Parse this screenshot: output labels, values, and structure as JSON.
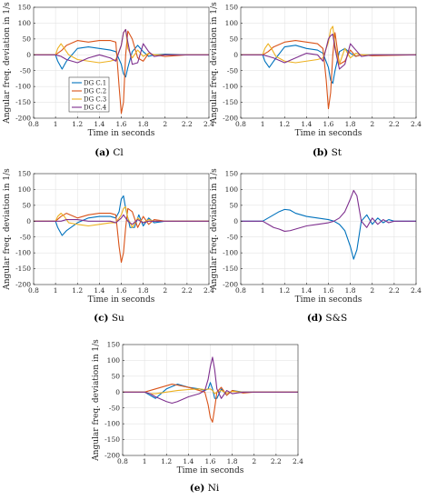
{
  "figure": {
    "captions": [
      {
        "letter": "(a)",
        "name": "Cl"
      },
      {
        "letter": "(b)",
        "name": "St"
      },
      {
        "letter": "(c)",
        "name": "Su"
      },
      {
        "letter": "(d)",
        "name": "S&S"
      },
      {
        "letter": "(e)",
        "name": "Ni"
      }
    ]
  },
  "colors": {
    "DG C.1": "#0072bd",
    "DG C.2": "#d95319",
    "DG C.3": "#edb120",
    "DG C.4": "#7e2f8e"
  },
  "chart_data": [
    {
      "id": "a",
      "type": "line",
      "title": "",
      "xlabel": "Time in seconds",
      "ylabel": "Angular freq. deviation in 1/s",
      "xlim": [
        0.8,
        2.4
      ],
      "ylim": [
        -200,
        150
      ],
      "grid": true,
      "xticks": [
        0.8,
        1,
        1.2,
        1.4,
        1.6,
        1.8,
        2,
        2.2,
        2.4
      ],
      "yticks": [
        -200,
        -150,
        -100,
        -50,
        0,
        50,
        100,
        150
      ],
      "legend": {
        "placement": "bottom-left",
        "entries": [
          "DG C.1",
          "DG C.2",
          "DG C.3",
          "DG C.4"
        ]
      },
      "series": [
        {
          "name": "DG C.1",
          "x": [
            0.8,
            1.0,
            1.02,
            1.06,
            1.1,
            1.2,
            1.3,
            1.4,
            1.5,
            1.55,
            1.6,
            1.62,
            1.64,
            1.66,
            1.7,
            1.75,
            1.8,
            1.85,
            1.9,
            2.0,
            2.2,
            2.4
          ],
          "y": [
            0,
            0,
            -20,
            -45,
            -20,
            20,
            25,
            20,
            15,
            10,
            -30,
            -60,
            -70,
            -40,
            10,
            30,
            10,
            -5,
            0,
            2,
            0,
            0
          ]
        },
        {
          "name": "DG C.2",
          "x": [
            0.8,
            1.0,
            1.02,
            1.06,
            1.1,
            1.2,
            1.3,
            1.4,
            1.5,
            1.55,
            1.58,
            1.6,
            1.62,
            1.64,
            1.66,
            1.7,
            1.75,
            1.8,
            1.85,
            1.9,
            2.0,
            2.2,
            2.4
          ],
          "y": [
            0,
            0,
            5,
            15,
            30,
            45,
            40,
            45,
            45,
            40,
            -100,
            -185,
            -150,
            0,
            75,
            50,
            -10,
            -20,
            5,
            0,
            -5,
            0,
            0
          ]
        },
        {
          "name": "DG C.3",
          "x": [
            0.8,
            1.0,
            1.02,
            1.05,
            1.08,
            1.12,
            1.2,
            1.3,
            1.4,
            1.5,
            1.55,
            1.6,
            1.62,
            1.64,
            1.66,
            1.7,
            1.75,
            1.8,
            1.85,
            1.9,
            2.0,
            2.4
          ],
          "y": [
            0,
            0,
            20,
            35,
            20,
            0,
            -15,
            -20,
            -25,
            -20,
            -15,
            30,
            70,
            80,
            20,
            -10,
            15,
            -5,
            5,
            0,
            0,
            0
          ]
        },
        {
          "name": "DG C.4",
          "x": [
            0.8,
            1.0,
            1.05,
            1.1,
            1.2,
            1.3,
            1.4,
            1.5,
            1.55,
            1.6,
            1.62,
            1.64,
            1.66,
            1.7,
            1.75,
            1.8,
            1.85,
            1.9,
            2.0,
            2.4
          ],
          "y": [
            0,
            0,
            -5,
            -15,
            -25,
            -10,
            0,
            -10,
            -20,
            30,
            70,
            80,
            40,
            -30,
            -25,
            35,
            10,
            -5,
            0,
            0
          ]
        }
      ]
    },
    {
      "id": "b",
      "type": "line",
      "title": "",
      "xlabel": "Time in seconds",
      "ylabel": "Angular freq. deviation in 1/s",
      "xlim": [
        0.8,
        2.4
      ],
      "ylim": [
        -200,
        150
      ],
      "grid": true,
      "xticks": [
        0.8,
        1,
        1.2,
        1.4,
        1.6,
        1.8,
        2,
        2.2,
        2.4
      ],
      "yticks": [
        -200,
        -150,
        -100,
        -50,
        0,
        50,
        100,
        150
      ],
      "series": [
        {
          "name": "DG C.1",
          "x": [
            0.8,
            1.0,
            1.02,
            1.06,
            1.1,
            1.2,
            1.3,
            1.4,
            1.5,
            1.55,
            1.6,
            1.62,
            1.64,
            1.66,
            1.7,
            1.75,
            1.8,
            1.85,
            1.9,
            2.0,
            2.4
          ],
          "y": [
            0,
            0,
            -20,
            -40,
            -20,
            25,
            30,
            20,
            15,
            5,
            -40,
            -80,
            -90,
            -50,
            10,
            20,
            5,
            -5,
            0,
            0,
            0
          ]
        },
        {
          "name": "DG C.2",
          "x": [
            0.8,
            1.0,
            1.05,
            1.1,
            1.2,
            1.3,
            1.4,
            1.5,
            1.55,
            1.58,
            1.6,
            1.62,
            1.64,
            1.66,
            1.7,
            1.75,
            1.8,
            1.85,
            1.9,
            2.0,
            2.4
          ],
          "y": [
            0,
            0,
            10,
            25,
            40,
            45,
            40,
            35,
            20,
            -80,
            -170,
            -120,
            0,
            70,
            -30,
            -20,
            15,
            -5,
            0,
            -3,
            0
          ]
        },
        {
          "name": "DG C.3",
          "x": [
            0.8,
            1.0,
            1.02,
            1.05,
            1.08,
            1.12,
            1.2,
            1.3,
            1.4,
            1.5,
            1.55,
            1.6,
            1.62,
            1.64,
            1.66,
            1.7,
            1.75,
            1.8,
            1.85,
            1.9,
            2.0,
            2.4
          ],
          "y": [
            0,
            0,
            20,
            35,
            20,
            -5,
            -20,
            -25,
            -20,
            -15,
            -10,
            40,
            80,
            90,
            30,
            -30,
            20,
            -10,
            5,
            0,
            0,
            0
          ]
        },
        {
          "name": "DG C.4",
          "x": [
            0.8,
            1.0,
            1.05,
            1.1,
            1.2,
            1.3,
            1.4,
            1.5,
            1.55,
            1.6,
            1.62,
            1.64,
            1.66,
            1.7,
            1.75,
            1.8,
            1.85,
            1.9,
            2.0,
            2.4
          ],
          "y": [
            0,
            0,
            -5,
            -10,
            -25,
            -10,
            5,
            0,
            -20,
            50,
            60,
            65,
            20,
            -45,
            -30,
            35,
            15,
            -5,
            0,
            0
          ]
        }
      ]
    },
    {
      "id": "c",
      "type": "line",
      "title": "",
      "xlabel": "Time in seconds",
      "ylabel": "Angular freq. deviation in 1/s",
      "xlim": [
        0.8,
        2.4
      ],
      "ylim": [
        -200,
        150
      ],
      "grid": true,
      "xticks": [
        0.8,
        1,
        1.2,
        1.4,
        1.6,
        1.8,
        2,
        2.2,
        2.4
      ],
      "yticks": [
        -200,
        -150,
        -100,
        -50,
        0,
        50,
        100,
        150
      ],
      "series": [
        {
          "name": "DG C.1",
          "x": [
            0.8,
            1.0,
            1.02,
            1.06,
            1.1,
            1.2,
            1.3,
            1.4,
            1.5,
            1.55,
            1.58,
            1.6,
            1.62,
            1.64,
            1.68,
            1.72,
            1.76,
            1.8,
            1.85,
            1.9,
            2.0,
            2.4
          ],
          "y": [
            0,
            0,
            -20,
            -45,
            -30,
            -5,
            10,
            15,
            15,
            10,
            30,
            70,
            80,
            40,
            -20,
            -20,
            20,
            -15,
            10,
            -5,
            0,
            0
          ]
        },
        {
          "name": "DG C.2",
          "x": [
            0.8,
            1.0,
            1.05,
            1.1,
            1.2,
            1.3,
            1.4,
            1.5,
            1.55,
            1.58,
            1.6,
            1.62,
            1.64,
            1.66,
            1.7,
            1.75,
            1.8,
            1.85,
            1.9,
            2.0,
            2.4
          ],
          "y": [
            0,
            0,
            15,
            25,
            10,
            20,
            25,
            25,
            20,
            -80,
            -130,
            -100,
            -20,
            40,
            30,
            -20,
            15,
            -10,
            5,
            0,
            0
          ]
        },
        {
          "name": "DG C.3",
          "x": [
            0.8,
            1.0,
            1.02,
            1.05,
            1.08,
            1.12,
            1.2,
            1.3,
            1.4,
            1.5,
            1.55,
            1.6,
            1.62,
            1.64,
            1.66,
            1.7,
            1.75,
            1.8,
            1.85,
            1.9,
            2.0,
            2.4
          ],
          "y": [
            0,
            0,
            15,
            25,
            15,
            -5,
            -10,
            -15,
            -10,
            -5,
            -5,
            20,
            40,
            45,
            10,
            -20,
            10,
            -5,
            5,
            0,
            0,
            0
          ]
        },
        {
          "name": "DG C.4",
          "x": [
            0.8,
            1.0,
            1.05,
            1.1,
            1.2,
            1.3,
            1.4,
            1.5,
            1.55,
            1.6,
            1.62,
            1.64,
            1.66,
            1.7,
            1.75,
            1.8,
            1.85,
            1.9,
            2.0,
            2.4
          ],
          "y": [
            0,
            0,
            0,
            5,
            5,
            0,
            0,
            0,
            -5,
            10,
            20,
            10,
            0,
            -10,
            5,
            -5,
            0,
            0,
            0,
            0
          ]
        }
      ]
    },
    {
      "id": "d",
      "type": "line",
      "title": "",
      "xlabel": "Time in seconds",
      "ylabel": "Angular freq. deviation in 1/s",
      "xlim": [
        0.8,
        2.4
      ],
      "ylim": [
        -200,
        150
      ],
      "grid": true,
      "xticks": [
        0.8,
        1,
        1.2,
        1.4,
        1.6,
        1.8,
        2,
        2.2,
        2.4
      ],
      "yticks": [
        -200,
        -150,
        -100,
        -50,
        0,
        50,
        100,
        150
      ],
      "series": [
        {
          "name": "DG C.1",
          "x": [
            0.8,
            1.0,
            1.05,
            1.1,
            1.15,
            1.2,
            1.25,
            1.3,
            1.4,
            1.5,
            1.6,
            1.65,
            1.7,
            1.75,
            1.8,
            1.83,
            1.86,
            1.9,
            1.95,
            2.0,
            2.05,
            2.1,
            2.15,
            2.2,
            2.3,
            2.4
          ],
          "y": [
            0,
            0,
            10,
            20,
            30,
            37,
            35,
            25,
            15,
            10,
            5,
            0,
            -10,
            -30,
            -80,
            -120,
            -90,
            0,
            20,
            -10,
            10,
            -5,
            5,
            0,
            0,
            0
          ]
        },
        {
          "name": "DG C.4",
          "x": [
            0.8,
            1.0,
            1.05,
            1.1,
            1.15,
            1.2,
            1.25,
            1.3,
            1.4,
            1.5,
            1.6,
            1.65,
            1.7,
            1.75,
            1.8,
            1.83,
            1.86,
            1.9,
            1.95,
            2.0,
            2.05,
            2.1,
            2.15,
            2.2,
            2.3,
            2.4
          ],
          "y": [
            0,
            0,
            -10,
            -20,
            -25,
            -32,
            -30,
            -25,
            -15,
            -10,
            -5,
            0,
            10,
            30,
            70,
            97,
            80,
            0,
            -20,
            10,
            -10,
            5,
            -5,
            0,
            0,
            0
          ]
        }
      ]
    },
    {
      "id": "e",
      "type": "line",
      "title": "",
      "xlabel": "Time in seconds",
      "ylabel": "Angular freq. deviation in 1/s",
      "xlim": [
        0.8,
        2.4
      ],
      "ylim": [
        -200,
        150
      ],
      "grid": true,
      "xticks": [
        0.8,
        1,
        1.2,
        1.4,
        1.6,
        1.8,
        2,
        2.2,
        2.4
      ],
      "yticks": [
        -200,
        -150,
        -100,
        -50,
        0,
        50,
        100,
        150
      ],
      "series": [
        {
          "name": "DG C.1",
          "x": [
            0.8,
            1.0,
            1.05,
            1.1,
            1.2,
            1.3,
            1.4,
            1.5,
            1.55,
            1.58,
            1.6,
            1.62,
            1.64,
            1.66,
            1.7,
            1.75,
            1.8,
            1.9,
            2.0,
            2.4
          ],
          "y": [
            0,
            0,
            -10,
            -20,
            10,
            25,
            15,
            10,
            5,
            10,
            30,
            10,
            -20,
            -20,
            10,
            -10,
            5,
            0,
            0,
            0
          ]
        },
        {
          "name": "DG C.2",
          "x": [
            0.8,
            1.0,
            1.05,
            1.1,
            1.2,
            1.25,
            1.3,
            1.4,
            1.5,
            1.55,
            1.58,
            1.6,
            1.62,
            1.64,
            1.66,
            1.7,
            1.75,
            1.8,
            1.9,
            2.0,
            2.4
          ],
          "y": [
            0,
            0,
            5,
            10,
            20,
            25,
            22,
            15,
            5,
            0,
            -40,
            -80,
            -95,
            -50,
            0,
            15,
            -10,
            5,
            -3,
            0,
            0
          ]
        },
        {
          "name": "DG C.3",
          "x": [
            0.8,
            1.0,
            1.05,
            1.1,
            1.2,
            1.3,
            1.4,
            1.5,
            1.55,
            1.6,
            1.62,
            1.64,
            1.66,
            1.7,
            1.75,
            1.8,
            1.9,
            2.0,
            2.4
          ],
          "y": [
            0,
            0,
            -5,
            -5,
            0,
            5,
            8,
            10,
            8,
            10,
            5,
            -5,
            0,
            5,
            -3,
            2,
            0,
            0,
            0
          ]
        },
        {
          "name": "DG C.4",
          "x": [
            0.8,
            1.0,
            1.05,
            1.1,
            1.2,
            1.25,
            1.3,
            1.4,
            1.5,
            1.55,
            1.58,
            1.6,
            1.62,
            1.64,
            1.66,
            1.7,
            1.75,
            1.8,
            1.9,
            2.0,
            2.4
          ],
          "y": [
            0,
            0,
            -5,
            -15,
            -30,
            -35,
            -30,
            -15,
            -5,
            5,
            40,
            80,
            110,
            70,
            10,
            -20,
            5,
            -5,
            0,
            0,
            0
          ]
        }
      ]
    }
  ]
}
